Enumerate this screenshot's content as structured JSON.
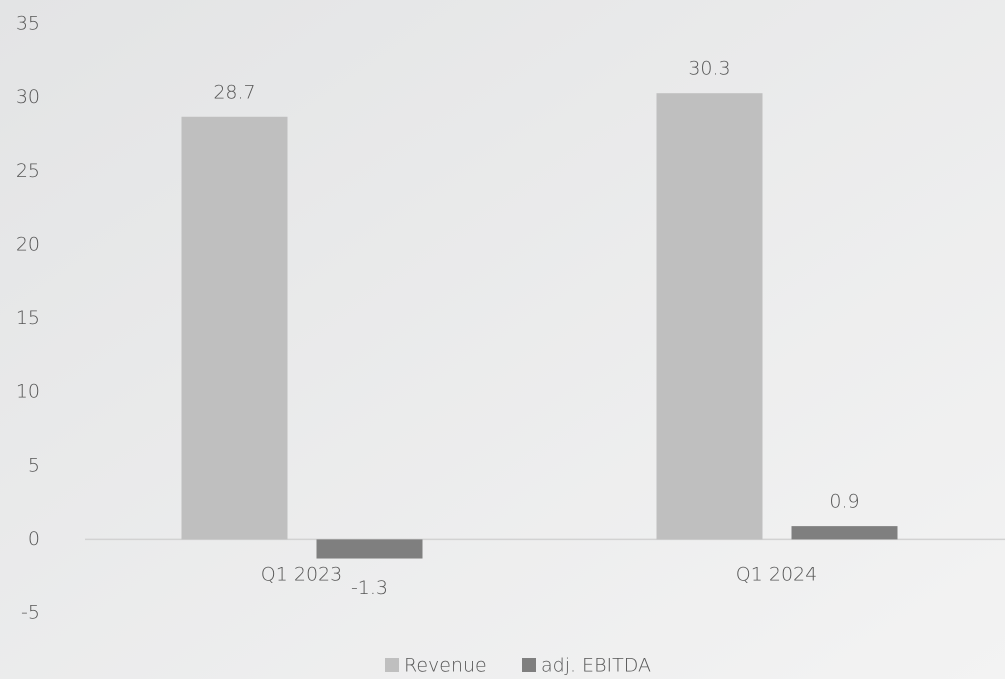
{
  "chart_data": {
    "type": "bar",
    "categories": [
      "Q1 2023",
      "Q1 2024"
    ],
    "series": [
      {
        "name": "Revenue",
        "color": "#bfbfbf",
        "values": [
          28.7,
          30.3
        ]
      },
      {
        "name": "adj. EBITDA",
        "color": "#7f7f7f",
        "values": [
          -1.3,
          0.9
        ]
      }
    ],
    "ylim": [
      -5,
      35
    ],
    "yticks": [
      -5,
      0,
      5,
      10,
      15,
      20,
      25,
      30,
      35
    ],
    "legend": "bottom"
  }
}
